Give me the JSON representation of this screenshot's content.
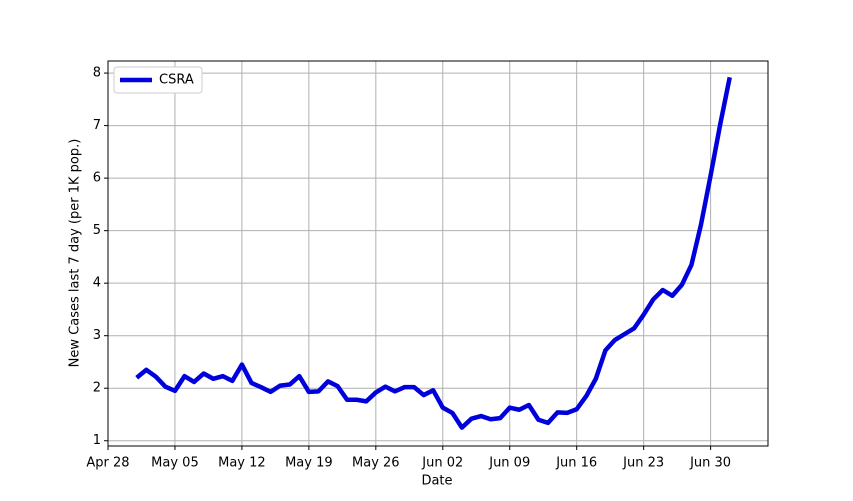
{
  "chart_data": {
    "type": "line",
    "xlabel": "Date",
    "ylabel": "New Cases last 7 day (per 1K pop.)",
    "x": [
      "May 01",
      "May 02",
      "May 03",
      "May 04",
      "May 05",
      "May 06",
      "May 07",
      "May 08",
      "May 09",
      "May 10",
      "May 11",
      "May 12",
      "May 13",
      "May 14",
      "May 15",
      "May 16",
      "May 17",
      "May 18",
      "May 19",
      "May 20",
      "May 21",
      "May 22",
      "May 23",
      "May 24",
      "May 25",
      "May 26",
      "May 27",
      "May 28",
      "May 29",
      "May 30",
      "May 31",
      "Jun 01",
      "Jun 02",
      "Jun 03",
      "Jun 04",
      "Jun 05",
      "Jun 06",
      "Jun 07",
      "Jun 08",
      "Jun 09",
      "Jun 10",
      "Jun 11",
      "Jun 12",
      "Jun 13",
      "Jun 14",
      "Jun 15",
      "Jun 16",
      "Jun 17",
      "Jun 18",
      "Jun 19",
      "Jun 20",
      "Jun 21",
      "Jun 22",
      "Jun 23",
      "Jun 24",
      "Jun 25",
      "Jun 26",
      "Jun 27",
      "Jun 28",
      "Jun 29",
      "Jun 30",
      "Jul 01",
      "Jul 02"
    ],
    "series": [
      {
        "name": "CSRA",
        "color": "#0000dd",
        "values": [
          2.2,
          2.35,
          2.22,
          2.03,
          1.95,
          2.23,
          2.12,
          2.28,
          2.18,
          2.23,
          2.14,
          2.45,
          2.1,
          2.02,
          1.93,
          2.05,
          2.07,
          2.23,
          1.93,
          1.94,
          2.13,
          2.04,
          1.78,
          1.78,
          1.75,
          1.92,
          2.03,
          1.94,
          2.02,
          2.02,
          1.87,
          1.96,
          1.63,
          1.53,
          1.25,
          1.42,
          1.47,
          1.41,
          1.43,
          1.63,
          1.59,
          1.68,
          1.4,
          1.34,
          1.54,
          1.53,
          1.6,
          1.85,
          2.18,
          2.72,
          2.92,
          3.03,
          3.14,
          3.4,
          3.69,
          3.87,
          3.76,
          3.97,
          4.35,
          5.12,
          6.05,
          7.02,
          7.92
        ]
      }
    ],
    "xlim": [
      "Apr 28",
      "Jul 06"
    ],
    "xticks": [
      "Apr 28",
      "May 05",
      "May 12",
      "May 19",
      "May 26",
      "Jun 02",
      "Jun 09",
      "Jun 16",
      "Jun 23",
      "Jun 30"
    ],
    "ylim": [
      0.9,
      8.23
    ],
    "yticks": [
      1,
      2,
      3,
      4,
      5,
      6,
      7,
      8
    ],
    "grid": true,
    "legend": "upper left"
  }
}
